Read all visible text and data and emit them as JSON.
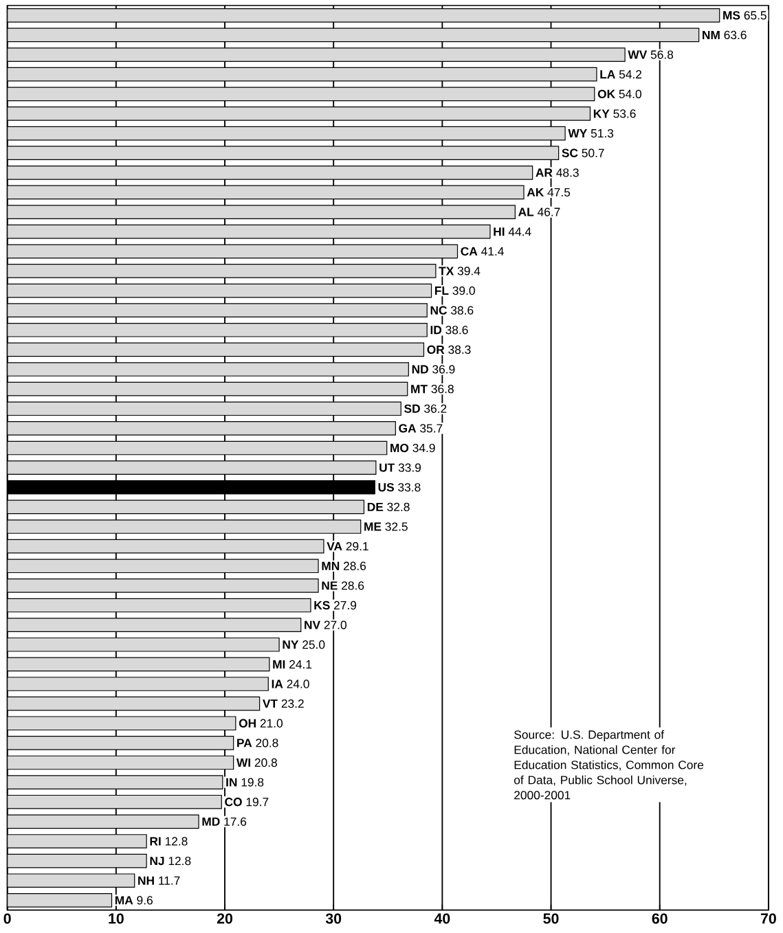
{
  "chart_data": {
    "type": "bar",
    "orientation": "horizontal",
    "categories": [
      "MS",
      "NM",
      "WV",
      "LA",
      "OK",
      "KY",
      "WY",
      "SC",
      "AR",
      "AK",
      "AL",
      "HI",
      "CA",
      "TX",
      "FL",
      "NC",
      "ID",
      "OR",
      "ND",
      "MT",
      "SD",
      "GA",
      "MO",
      "UT",
      "US",
      "DE",
      "ME",
      "VA",
      "MN",
      "NE",
      "KS",
      "NV",
      "NY",
      "MI",
      "IA",
      "VT",
      "OH",
      "PA",
      "WI",
      "IN",
      "CO",
      "MD",
      "RI",
      "NJ",
      "NH",
      "MA"
    ],
    "values": [
      65.5,
      63.6,
      56.8,
      54.2,
      54.0,
      53.6,
      51.3,
      50.7,
      48.3,
      47.5,
      46.7,
      44.4,
      41.4,
      39.4,
      39.0,
      38.6,
      38.6,
      38.3,
      36.9,
      36.8,
      36.2,
      35.7,
      34.9,
      33.9,
      33.8,
      32.8,
      32.5,
      29.1,
      28.6,
      28.6,
      27.9,
      27.0,
      25.0,
      24.1,
      24.0,
      23.2,
      21.0,
      20.8,
      20.8,
      19.8,
      19.7,
      17.6,
      12.8,
      12.8,
      11.7,
      9.6
    ],
    "value_labels": [
      "65.5",
      "63.6",
      "56.8",
      "54.2",
      "54.0",
      "53.6",
      "51.3",
      "50.7",
      "48.3",
      "47.5",
      "46.7",
      "44.4",
      "41.4",
      "39.4",
      "39.0",
      "38.6",
      "38.6",
      "38.3",
      "36.9",
      "36.8",
      "36.2",
      "35.7",
      "34.9",
      "33.9",
      "33.8",
      "32.8",
      "32.5",
      "29.1",
      "28.6",
      "28.6",
      "27.9",
      "27.0",
      "25.0",
      "24.1",
      "24.0",
      "23.2",
      "21.0",
      "20.8",
      "20.8",
      "19.8",
      "19.7",
      "17.6",
      "12.8",
      "12.8",
      "11.7",
      "9.6"
    ],
    "colors": [
      "#d9d9d9",
      "#d9d9d9",
      "#d9d9d9",
      "#d9d9d9",
      "#d9d9d9",
      "#d9d9d9",
      "#d9d9d9",
      "#d9d9d9",
      "#d9d9d9",
      "#d9d9d9",
      "#d9d9d9",
      "#d9d9d9",
      "#d9d9d9",
      "#d9d9d9",
      "#d9d9d9",
      "#d9d9d9",
      "#d9d9d9",
      "#d9d9d9",
      "#d9d9d9",
      "#d9d9d9",
      "#d9d9d9",
      "#d9d9d9",
      "#d9d9d9",
      "#d9d9d9",
      "#000000",
      "#d9d9d9",
      "#d9d9d9",
      "#d9d9d9",
      "#d9d9d9",
      "#d9d9d9",
      "#d9d9d9",
      "#d9d9d9",
      "#d9d9d9",
      "#d9d9d9",
      "#d9d9d9",
      "#d9d9d9",
      "#d9d9d9",
      "#d9d9d9",
      "#d9d9d9",
      "#d9d9d9",
      "#d9d9d9",
      "#d9d9d9",
      "#d9d9d9",
      "#d9d9d9",
      "#d9d9d9",
      "#d9d9d9"
    ],
    "xlim": [
      0,
      70
    ],
    "xticks": [
      0,
      10,
      20,
      30,
      40,
      50,
      60,
      70
    ],
    "grid": "x",
    "tick_labels": "x",
    "annotations": [
      "Source: U.S. Department of Education, National Center for Education Statistics, Common Core of Data, Public School Universe, 2000-2001"
    ]
  }
}
